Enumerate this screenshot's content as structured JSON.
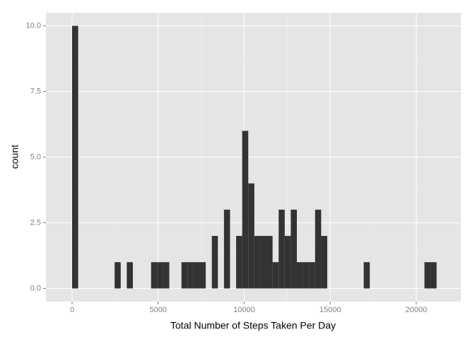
{
  "chart_data": {
    "type": "histogram",
    "x_label": "Total Number of Steps Taken Per Day",
    "y_label": "count",
    "color": "#333333",
    "bins": [
      0,
      353,
      706,
      1059,
      1412,
      1765,
      2118,
      2471,
      2824,
      3177,
      3530,
      3883,
      4236,
      4589,
      4942,
      5295,
      5648,
      6001,
      6354,
      6707,
      7060,
      7413,
      7766,
      8119,
      8472,
      8825,
      9178,
      9531,
      9884,
      10237,
      10590,
      10943,
      11296,
      11649,
      12002,
      12355,
      12708,
      13061,
      13414,
      13767,
      14120,
      14473,
      14826,
      15179,
      15532,
      15885,
      16238,
      16591,
      16944,
      17297,
      17650,
      18003,
      18356,
      18709,
      19062,
      19415,
      19768,
      20121,
      20474,
      20827,
      21180
    ],
    "values": [
      10,
      0,
      0,
      0,
      0,
      0,
      0,
      1,
      0,
      1,
      0,
      0,
      0,
      1,
      1,
      1,
      0,
      0,
      1,
      1,
      1,
      1,
      0,
      2,
      0,
      3,
      0,
      2,
      6,
      4,
      2,
      2,
      2,
      1,
      3,
      2,
      3,
      1,
      1,
      1,
      3,
      2,
      0,
      0,
      0,
      0,
      0,
      0,
      1,
      0,
      0,
      0,
      0,
      0,
      0,
      0,
      0,
      0,
      1,
      1
    ],
    "xlim": [
      -1520,
      22590
    ],
    "ylim": [
      -0.5,
      10.5
    ],
    "xticks": [
      0,
      5000,
      10000,
      15000,
      20000
    ],
    "yticks": [
      {
        "value": 0,
        "label": "0.0"
      },
      {
        "value": 2.5,
        "label": "2.5"
      },
      {
        "value": 5,
        "label": "5.0"
      },
      {
        "value": 7.5,
        "label": "7.5"
      },
      {
        "value": 10,
        "label": "10.0"
      }
    ],
    "grid": true
  }
}
